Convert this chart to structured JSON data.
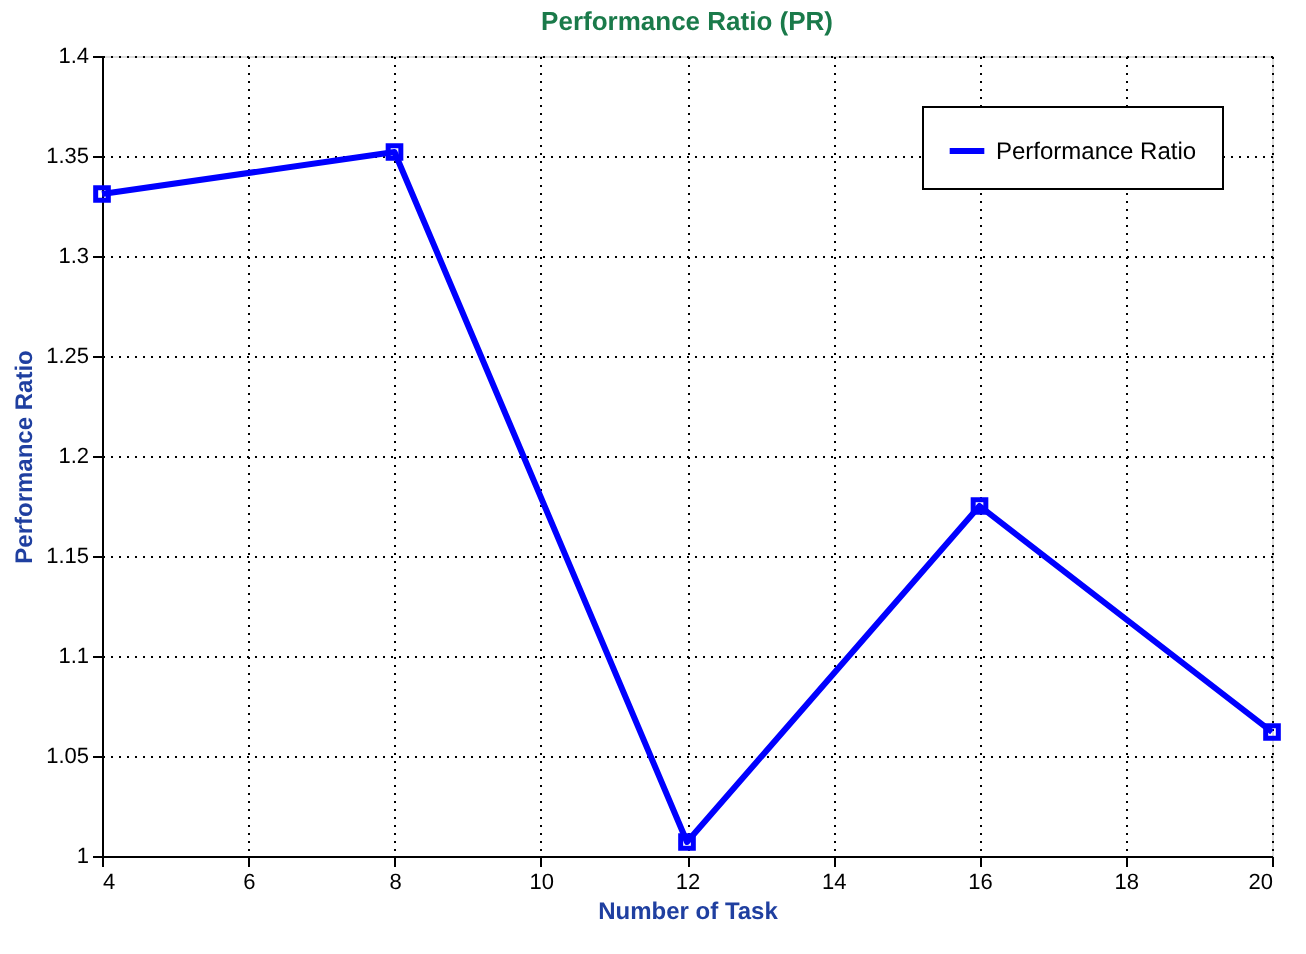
{
  "chart_data": {
    "type": "line",
    "title": "Performance Ratio (PR)",
    "xlabel": "Number of Task",
    "ylabel": "Performance Ratio",
    "x": [
      4,
      8,
      12,
      16,
      20
    ],
    "series": [
      {
        "name": "Performance Ratio",
        "color": "#0000ff",
        "values": [
          1.331,
          1.352,
          1.007,
          1.175,
          1.062
        ]
      }
    ],
    "xlim": [
      4,
      20
    ],
    "xticks": [
      4,
      6,
      8,
      10,
      12,
      14,
      16,
      18,
      20
    ],
    "ylim": [
      1,
      1.4
    ],
    "yticks": [
      1,
      1.05,
      1.1,
      1.15,
      1.2,
      1.25,
      1.3,
      1.35,
      1.4
    ],
    "grid": true,
    "legend": "top right",
    "marker": "square",
    "line_style": "solid"
  }
}
